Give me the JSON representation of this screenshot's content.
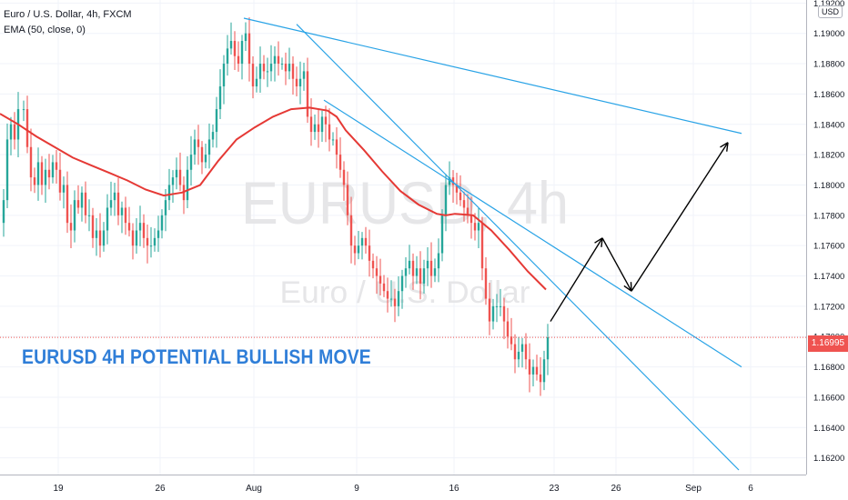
{
  "header": {
    "symbol_line": "Euro / U.S. Dollar, 4h, FXCM",
    "indicator_line": "EMA (50, close, 0)",
    "currency_badge": "USD"
  },
  "watermark": {
    "primary": "EURUSD, 4h",
    "secondary": "Euro / U.S. Dollar"
  },
  "annotation": "EURUSD 4H POTENTIAL BULLISH MOVE",
  "last_price_label": "1.16995",
  "colors": {
    "up_candle": "#26a69a",
    "down_candle": "#ef5350",
    "ema": "#e53935",
    "trendline": "#29a3e6",
    "annotation": "#2f7ed8",
    "projection": "#000000",
    "price_line": "#ef5350"
  },
  "chart_data": {
    "type": "candlestick",
    "y_axis": {
      "position": "right",
      "ylim": [
        1.1609,
        1.1922
      ],
      "ticks": [
        1.162,
        1.164,
        1.166,
        1.168,
        1.17,
        1.172,
        1.174,
        1.176,
        1.178,
        1.18,
        1.182,
        1.184,
        1.186,
        1.188,
        1.19,
        1.192
      ],
      "tick_labels": [
        "1.16200",
        "1.16400",
        "1.16600",
        "1.16800",
        "1.17000",
        "1.17200",
        "1.17400",
        "1.17600",
        "1.17800",
        "1.18000",
        "1.18200",
        "1.18400",
        "1.18600",
        "1.18800",
        "1.19000",
        "1.19200"
      ]
    },
    "x_axis": {
      "labels": [
        "19",
        "26",
        "Aug",
        "9",
        "16",
        "23",
        "26",
        "Sep",
        "6"
      ],
      "label_x": [
        64,
        176,
        279,
        392,
        499,
        609,
        677,
        762,
        825
      ]
    },
    "grid": true,
    "candle_bars": [
      76,
      91,
      104
    ],
    "close_path": [
      [
        0,
        1.1775
      ],
      [
        4,
        1.179
      ],
      [
        8,
        1.183
      ],
      [
        12,
        1.184
      ],
      [
        16,
        1.183
      ],
      [
        20,
        1.185
      ],
      [
        26,
        1.185
      ],
      [
        30,
        1.1825
      ],
      [
        34,
        1.1805
      ],
      [
        38,
        1.18
      ],
      [
        42,
        1.1815
      ],
      [
        46,
        1.18
      ],
      [
        50,
        1.181
      ],
      [
        54,
        1.1805
      ],
      [
        58,
        1.1815
      ],
      [
        62,
        1.181
      ],
      [
        66,
        1.1795
      ],
      [
        70,
        1.18
      ],
      [
        74,
        1.1775
      ],
      [
        78,
        1.177
      ],
      [
        82,
        1.179
      ],
      [
        86,
        1.1785
      ],
      [
        90,
        1.1795
      ],
      [
        94,
        1.178
      ],
      [
        98,
        1.178
      ],
      [
        102,
        1.1765
      ],
      [
        106,
        1.177
      ],
      [
        110,
        1.176
      ],
      [
        114,
        1.177
      ],
      [
        118,
        1.1785
      ],
      [
        122,
        1.179
      ],
      [
        126,
        1.1795
      ],
      [
        130,
        1.178
      ],
      [
        134,
        1.1785
      ],
      [
        138,
        1.1775
      ],
      [
        142,
        1.177
      ],
      [
        146,
        1.176
      ],
      [
        150,
        1.177
      ],
      [
        154,
        1.1775
      ],
      [
        158,
        1.1765
      ],
      [
        162,
        1.176
      ],
      [
        166,
        1.176
      ],
      [
        170,
        1.1765
      ],
      [
        174,
        1.177
      ],
      [
        178,
        1.178
      ],
      [
        182,
        1.179
      ],
      [
        186,
        1.18
      ],
      [
        190,
        1.1805
      ],
      [
        194,
        1.181
      ],
      [
        198,
        1.18
      ],
      [
        202,
        1.179
      ],
      [
        206,
        1.181
      ],
      [
        210,
        1.182
      ],
      [
        214,
        1.183
      ],
      [
        218,
        1.1825
      ],
      [
        222,
        1.1815
      ],
      [
        226,
        1.182
      ],
      [
        230,
        1.183
      ],
      [
        234,
        1.1835
      ],
      [
        238,
        1.185
      ],
      [
        242,
        1.1865
      ],
      [
        246,
        1.188
      ],
      [
        250,
        1.189
      ],
      [
        254,
        1.1895
      ],
      [
        258,
        1.1885
      ],
      [
        262,
        1.188
      ],
      [
        266,
        1.1895
      ],
      [
        270,
        1.19
      ],
      [
        274,
        1.188
      ],
      [
        278,
        1.1865
      ],
      [
        282,
        1.187
      ],
      [
        286,
        1.188
      ],
      [
        290,
        1.1875
      ],
      [
        294,
        1.1875
      ],
      [
        298,
        1.188
      ],
      [
        302,
        1.1885
      ],
      [
        306,
        1.188
      ],
      [
        310,
        1.188
      ],
      [
        314,
        1.1875
      ],
      [
        318,
        1.188
      ],
      [
        322,
        1.187
      ],
      [
        326,
        1.1865
      ],
      [
        330,
        1.187
      ],
      [
        334,
        1.1875
      ],
      [
        338,
        1.1845
      ],
      [
        342,
        1.1835
      ],
      [
        346,
        1.184
      ],
      [
        350,
        1.1835
      ],
      [
        354,
        1.1845
      ],
      [
        358,
        1.184
      ],
      [
        362,
        1.183
      ],
      [
        366,
        1.183
      ],
      [
        370,
        1.182
      ],
      [
        374,
        1.181
      ],
      [
        378,
        1.18
      ],
      [
        382,
        1.178
      ],
      [
        386,
        1.176
      ],
      [
        390,
        1.1755
      ],
      [
        394,
        1.176
      ],
      [
        398,
        1.1765
      ],
      [
        402,
        1.176
      ],
      [
        406,
        1.175
      ],
      [
        410,
        1.1745
      ],
      [
        414,
        1.174
      ],
      [
        418,
        1.1735
      ],
      [
        422,
        1.173
      ],
      [
        426,
        1.1725
      ],
      [
        430,
        1.1725
      ],
      [
        434,
        1.172
      ],
      [
        438,
        1.173
      ],
      [
        442,
        1.174
      ],
      [
        446,
        1.1745
      ],
      [
        450,
        1.175
      ],
      [
        454,
        1.174
      ],
      [
        458,
        1.1745
      ],
      [
        462,
        1.1735
      ],
      [
        466,
        1.1745
      ],
      [
        470,
        1.175
      ],
      [
        474,
        1.174
      ],
      [
        478,
        1.1745
      ],
      [
        482,
        1.1755
      ],
      [
        486,
        1.178
      ],
      [
        490,
        1.18
      ],
      [
        494,
        1.1805
      ],
      [
        498,
        1.18
      ],
      [
        502,
        1.1795
      ],
      [
        506,
        1.179
      ],
      [
        510,
        1.1785
      ],
      [
        514,
        1.178
      ],
      [
        518,
        1.1775
      ],
      [
        522,
        1.177
      ],
      [
        526,
        1.1775
      ],
      [
        530,
        1.1745
      ],
      [
        534,
        1.1725
      ],
      [
        538,
        1.171
      ],
      [
        542,
        1.172
      ],
      [
        546,
        1.172
      ],
      [
        550,
        1.172
      ],
      [
        554,
        1.171
      ],
      [
        558,
        1.17
      ],
      [
        562,
        1.1695
      ],
      [
        566,
        1.1685
      ],
      [
        570,
        1.169
      ],
      [
        574,
        1.1695
      ],
      [
        578,
        1.1685
      ],
      [
        582,
        1.1675
      ],
      [
        586,
        1.168
      ],
      [
        590,
        1.1675
      ],
      [
        594,
        1.167
      ],
      [
        598,
        1.1685
      ],
      [
        602,
        1.16995
      ]
    ],
    "series": [
      {
        "name": "EMA (50, close, 0)",
        "type": "line",
        "points": [
          [
            0,
            1.1847
          ],
          [
            20,
            1.184
          ],
          [
            40,
            1.1832
          ],
          [
            60,
            1.1825
          ],
          [
            80,
            1.1818
          ],
          [
            100,
            1.1813
          ],
          [
            120,
            1.1808
          ],
          [
            140,
            1.1803
          ],
          [
            160,
            1.1797
          ],
          [
            180,
            1.1793
          ],
          [
            200,
            1.1795
          ],
          [
            220,
            1.18
          ],
          [
            240,
            1.1816
          ],
          [
            260,
            1.183
          ],
          [
            280,
            1.1838
          ],
          [
            300,
            1.1845
          ],
          [
            320,
            1.185
          ],
          [
            340,
            1.1851
          ],
          [
            360,
            1.1849
          ],
          [
            370,
            1.1845
          ],
          [
            380,
            1.1836
          ],
          [
            400,
            1.1823
          ],
          [
            420,
            1.1809
          ],
          [
            440,
            1.1796
          ],
          [
            460,
            1.1787
          ],
          [
            480,
            1.1781
          ],
          [
            490,
            1.178
          ],
          [
            500,
            1.1781
          ],
          [
            520,
            1.178
          ],
          [
            540,
            1.177
          ],
          [
            560,
            1.1757
          ],
          [
            580,
            1.1743
          ],
          [
            600,
            1.1731
          ]
        ]
      }
    ],
    "trendlines": [
      {
        "x1": 268,
        "y1": 1.191,
        "x2": 815,
        "y2": 1.1834
      },
      {
        "x1": 326,
        "y1": 1.1906,
        "x2": 812,
        "y2": 1.1612
      },
      {
        "x1": 356,
        "y1": 1.1856,
        "x2": 815,
        "y2": 1.168
      }
    ],
    "projection_path": [
      [
        605,
        1.171
      ],
      [
        662,
        1.1765
      ],
      [
        694,
        1.173
      ],
      [
        800,
        1.1828
      ]
    ],
    "last_price": 1.16995,
    "last_price_label": "1.16995"
  }
}
